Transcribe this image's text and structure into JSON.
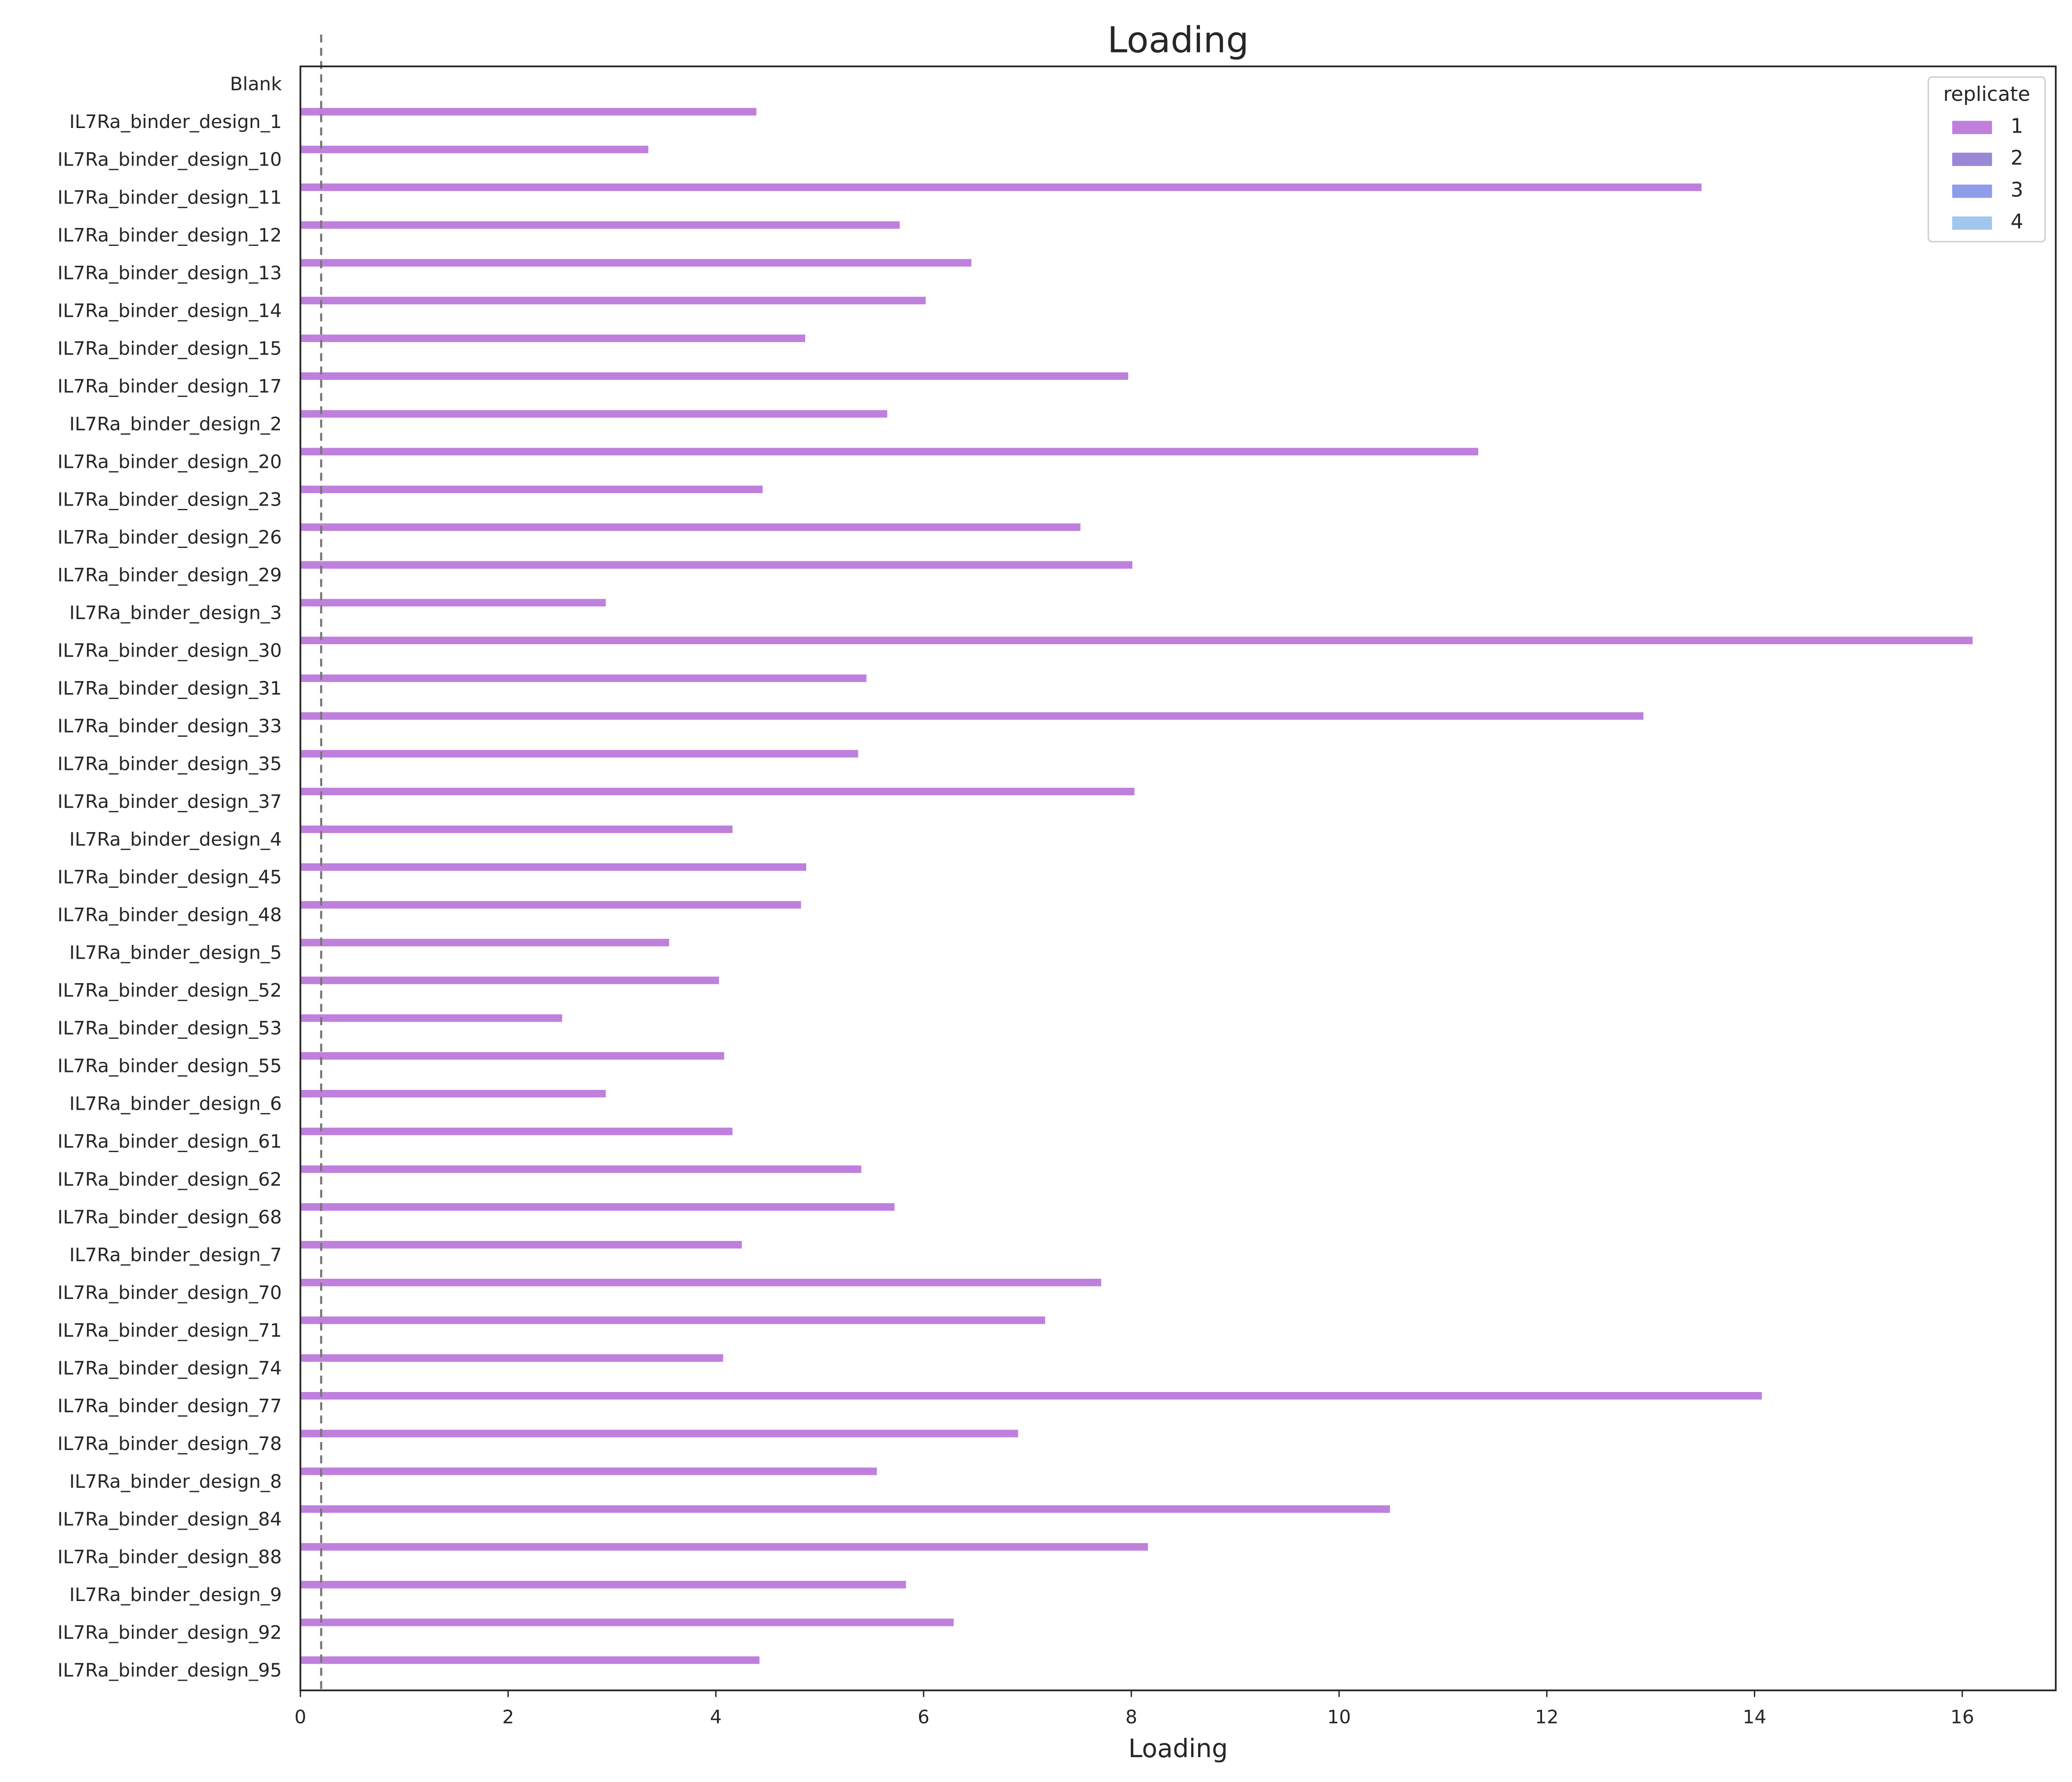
{
  "chart_data": {
    "type": "bar",
    "orientation": "horizontal",
    "title": "Loading",
    "x_label": "Loading",
    "categories": [
      "Blank",
      "IL7Ra_binder_design_1",
      "IL7Ra_binder_design_10",
      "IL7Ra_binder_design_11",
      "IL7Ra_binder_design_12",
      "IL7Ra_binder_design_13",
      "IL7Ra_binder_design_14",
      "IL7Ra_binder_design_15",
      "IL7Ra_binder_design_17",
      "IL7Ra_binder_design_2",
      "IL7Ra_binder_design_20",
      "IL7Ra_binder_design_23",
      "IL7Ra_binder_design_26",
      "IL7Ra_binder_design_29",
      "IL7Ra_binder_design_3",
      "IL7Ra_binder_design_30",
      "IL7Ra_binder_design_31",
      "IL7Ra_binder_design_33",
      "IL7Ra_binder_design_35",
      "IL7Ra_binder_design_37",
      "IL7Ra_binder_design_4",
      "IL7Ra_binder_design_45",
      "IL7Ra_binder_design_48",
      "IL7Ra_binder_design_5",
      "IL7Ra_binder_design_52",
      "IL7Ra_binder_design_53",
      "IL7Ra_binder_design_55",
      "IL7Ra_binder_design_6",
      "IL7Ra_binder_design_61",
      "IL7Ra_binder_design_62",
      "IL7Ra_binder_design_68",
      "IL7Ra_binder_design_7",
      "IL7Ra_binder_design_70",
      "IL7Ra_binder_design_71",
      "IL7Ra_binder_design_74",
      "IL7Ra_binder_design_77",
      "IL7Ra_binder_design_78",
      "IL7Ra_binder_design_8",
      "IL7Ra_binder_design_84",
      "IL7Ra_binder_design_88",
      "IL7Ra_binder_design_9",
      "IL7Ra_binder_design_92",
      "IL7Ra_binder_design_95"
    ],
    "series": [
      {
        "name": "1",
        "color": "#bf80dd",
        "values": [
          null,
          4.39,
          3.35,
          13.49,
          5.77,
          6.46,
          6.02,
          4.86,
          7.97,
          5.65,
          11.34,
          4.45,
          7.51,
          8.01,
          2.94,
          16.1,
          5.45,
          12.93,
          5.37,
          8.03,
          4.16,
          4.87,
          4.82,
          3.55,
          4.03,
          2.52,
          4.08,
          2.94,
          4.16,
          5.4,
          5.72,
          4.25,
          7.71,
          7.17,
          4.07,
          14.07,
          6.91,
          5.55,
          10.49,
          8.16,
          5.83,
          6.29,
          4.42
        ]
      },
      {
        "name": "2",
        "color": "#9a87d6",
        "values": [
          null,
          null,
          null,
          null,
          null,
          null,
          null,
          null,
          null,
          null,
          null,
          null,
          null,
          null,
          null,
          null,
          null,
          null,
          null,
          null,
          null,
          null,
          null,
          null,
          null,
          null,
          null,
          null,
          null,
          null,
          null,
          null,
          null,
          null,
          null,
          null,
          null,
          null,
          null,
          null,
          null,
          null,
          null
        ]
      },
      {
        "name": "3",
        "color": "#8f9ce9",
        "values": [
          null,
          null,
          null,
          null,
          null,
          null,
          null,
          null,
          null,
          null,
          null,
          null,
          null,
          null,
          null,
          null,
          null,
          null,
          null,
          null,
          null,
          null,
          null,
          null,
          null,
          null,
          null,
          null,
          null,
          null,
          null,
          null,
          null,
          null,
          null,
          null,
          null,
          null,
          null,
          null,
          null,
          null,
          null
        ]
      },
      {
        "name": "4",
        "color": "#a0c8ee",
        "values": [
          null,
          null,
          null,
          null,
          null,
          null,
          null,
          null,
          null,
          null,
          null,
          null,
          null,
          null,
          null,
          null,
          null,
          null,
          null,
          null,
          null,
          null,
          null,
          null,
          null,
          null,
          null,
          null,
          null,
          null,
          null,
          null,
          null,
          null,
          null,
          null,
          null,
          null,
          null,
          null,
          null,
          null,
          null
        ]
      }
    ],
    "legend_title": "replicate",
    "legend_position": "upper right",
    "reference_line": 0.2,
    "xlim": [
      0,
      16.9
    ],
    "xticks": [
      0,
      2,
      4,
      6,
      8,
      10,
      12,
      14,
      16
    ],
    "grid": false
  }
}
